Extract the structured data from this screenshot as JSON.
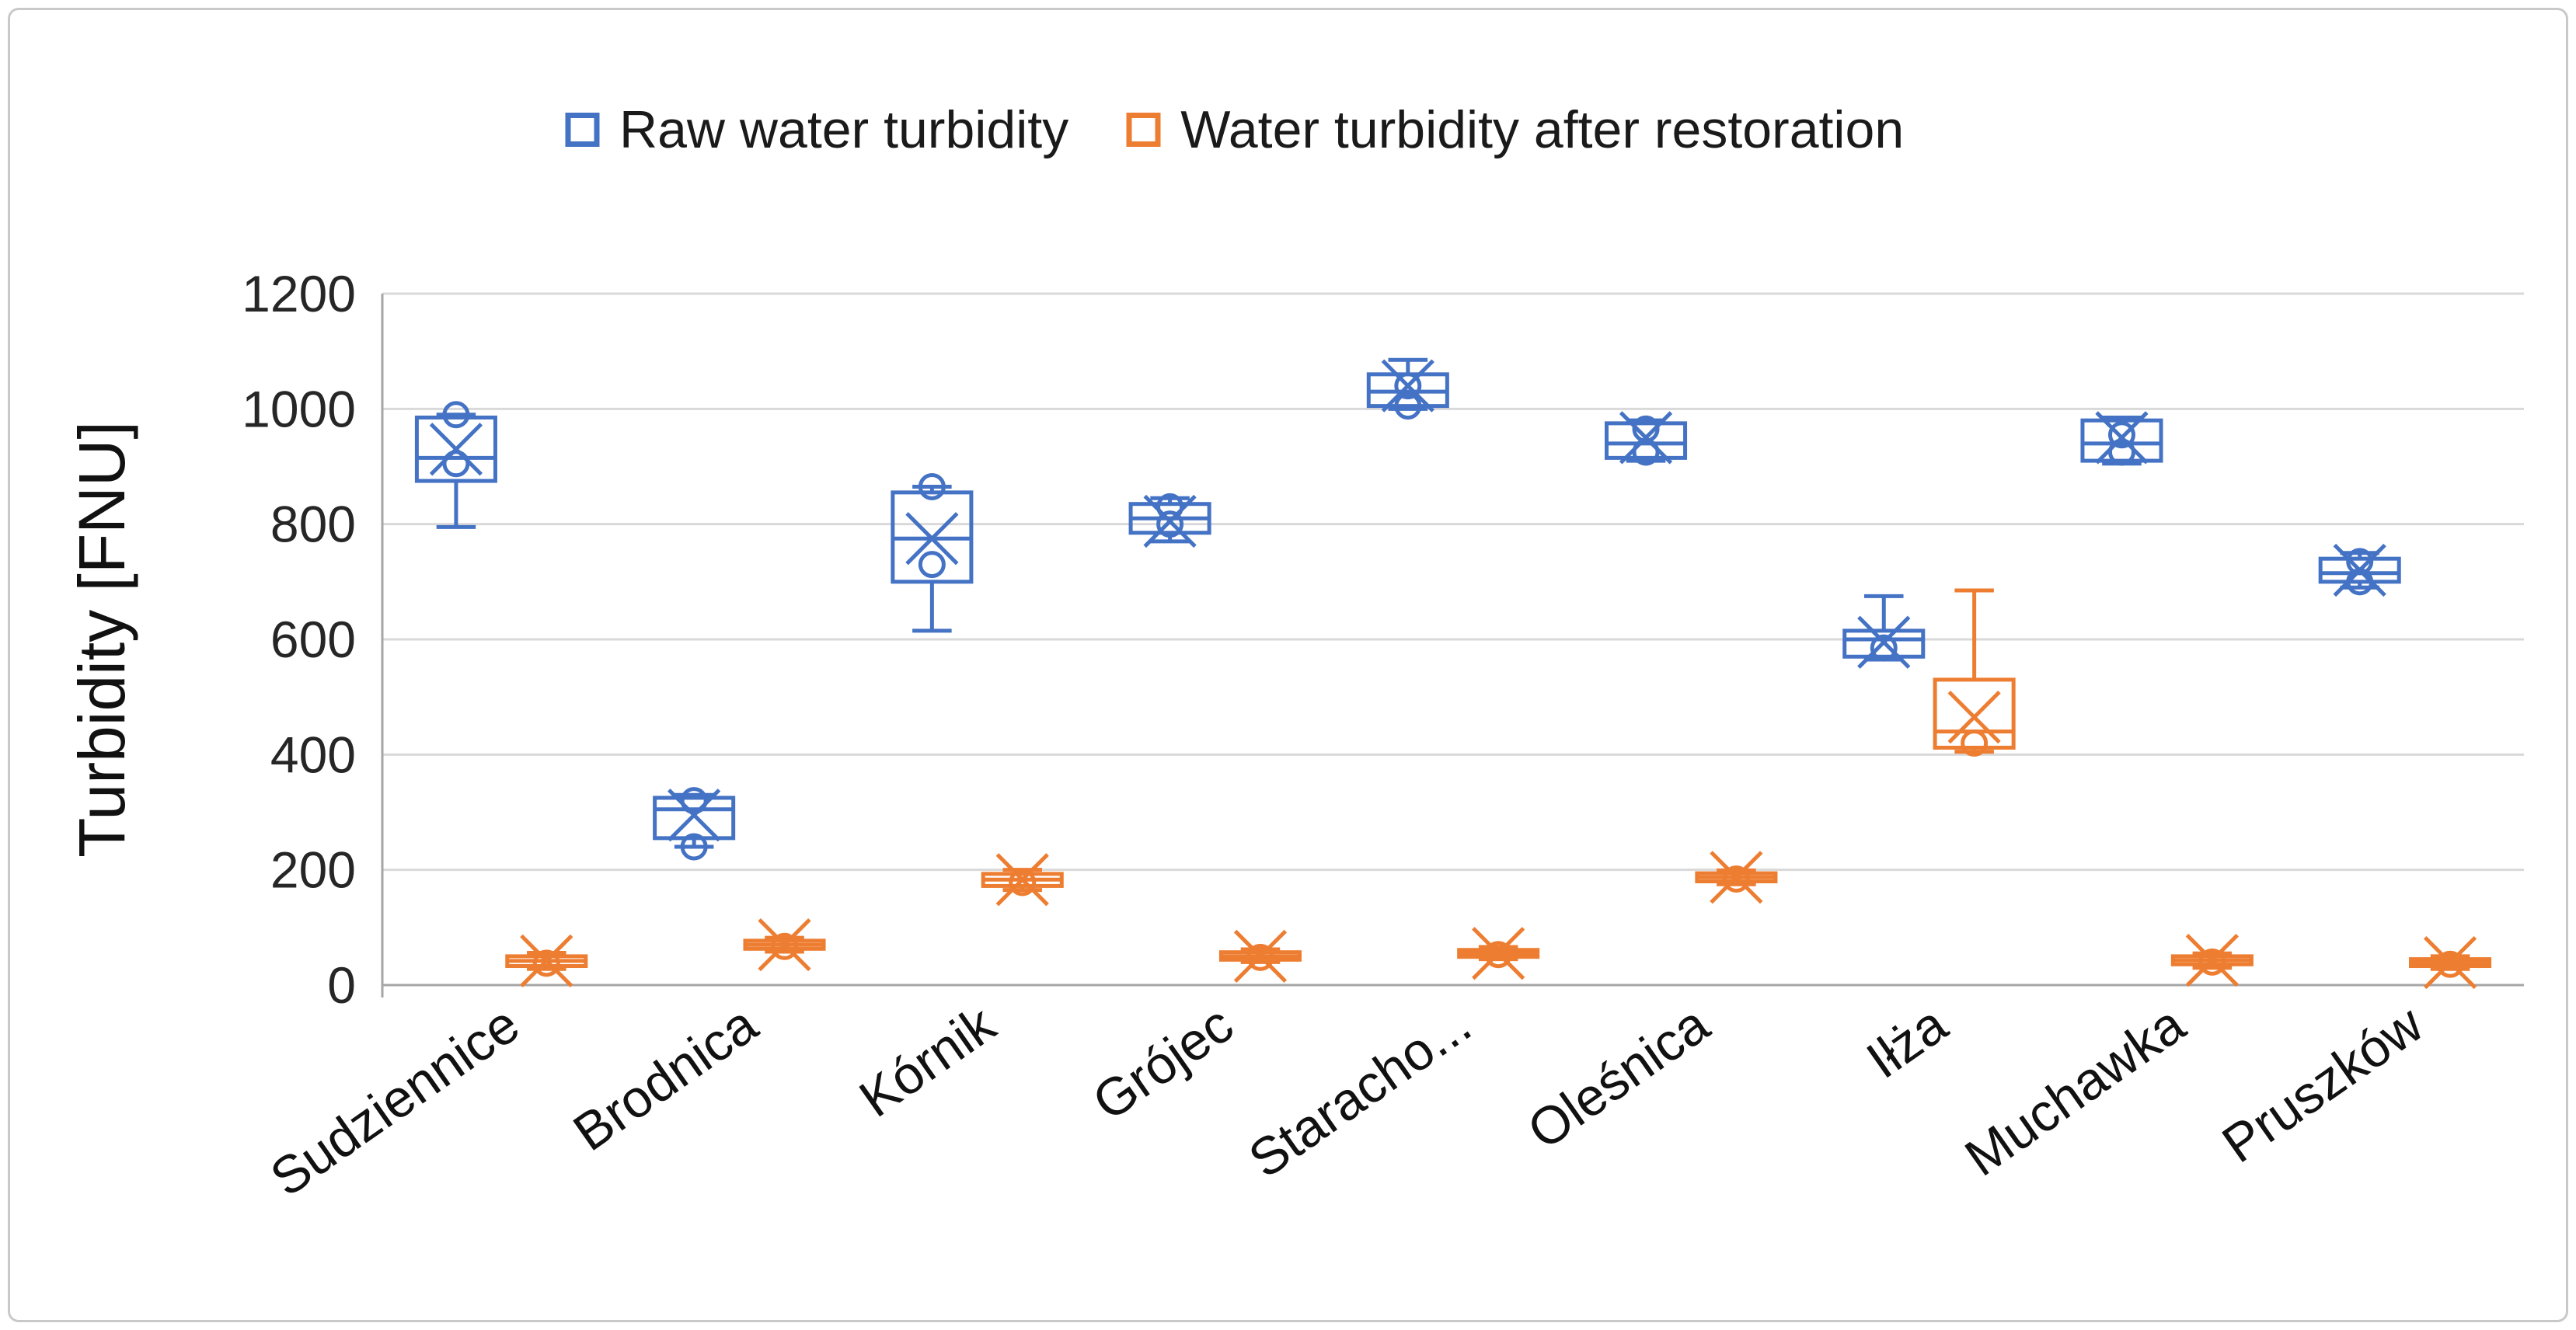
{
  "chart_data": {
    "type": "boxplot",
    "title": "",
    "ylabel": "Turbidity [FNU]",
    "ylim": [
      0,
      1200
    ],
    "ytick_interval": 200,
    "ytick_labels": [
      "0",
      "200",
      "400",
      "600",
      "800",
      "1000",
      "1200"
    ],
    "grid": "horizontal",
    "legend_position": "top",
    "categories": [
      "Sudziennice",
      "Brodnica",
      "Kórnik",
      "Grójec",
      "Staracho...",
      "Oleśnica",
      "Iłża",
      "Muchawka",
      "Pruszków"
    ],
    "series": [
      {
        "name": "Raw water turbidity",
        "color": "#4472C4",
        "boxes": [
          {
            "low": 795,
            "q1": 875,
            "median": 915,
            "q3": 985,
            "high": 990,
            "mean": 930,
            "outliers": [
              905,
              990
            ]
          },
          {
            "low": 240,
            "q1": 255,
            "median": 305,
            "q3": 325,
            "high": 330,
            "mean": 295,
            "outliers": [
              240,
              320
            ]
          },
          {
            "low": 615,
            "q1": 700,
            "median": 775,
            "q3": 855,
            "high": 865,
            "mean": 775,
            "outliers": [
              730,
              865
            ]
          },
          {
            "low": 770,
            "q1": 785,
            "median": 810,
            "q3": 835,
            "high": 845,
            "mean": 805,
            "outliers": [
              800,
              830
            ]
          },
          {
            "low": 1000,
            "q1": 1005,
            "median": 1030,
            "q3": 1060,
            "high": 1085,
            "mean": 1040,
            "outliers": [
              1005,
              1040
            ]
          },
          {
            "low": 910,
            "q1": 915,
            "median": 940,
            "q3": 975,
            "high": 980,
            "mean": 950,
            "outliers": [
              925,
              965
            ]
          },
          {
            "low": 565,
            "q1": 570,
            "median": 600,
            "q3": 615,
            "high": 675,
            "mean": 595,
            "outliers": [
              585
            ]
          },
          {
            "low": 905,
            "q1": 910,
            "median": 940,
            "q3": 980,
            "high": 985,
            "mean": 950,
            "outliers": [
              925,
              955
            ]
          },
          {
            "low": 690,
            "q1": 700,
            "median": 715,
            "q3": 740,
            "high": 750,
            "mean": 720,
            "outliers": [
              700,
              735
            ]
          }
        ]
      },
      {
        "name": "Water turbidity after restoration",
        "color": "#ED7D31",
        "boxes": [
          {
            "low": 28,
            "q1": 33,
            "median": 42,
            "q3": 50,
            "high": 56,
            "mean": 42,
            "outliers": [
              38
            ]
          },
          {
            "low": 58,
            "q1": 63,
            "median": 70,
            "q3": 77,
            "high": 82,
            "mean": 70,
            "outliers": [
              67
            ]
          },
          {
            "low": 165,
            "q1": 172,
            "median": 183,
            "q3": 193,
            "high": 200,
            "mean": 183,
            "outliers": [
              178
            ]
          },
          {
            "low": 40,
            "q1": 44,
            "median": 50,
            "q3": 57,
            "high": 62,
            "mean": 50,
            "outliers": [
              48
            ]
          },
          {
            "low": 45,
            "q1": 49,
            "median": 55,
            "q3": 61,
            "high": 66,
            "mean": 55,
            "outliers": [
              53
            ]
          },
          {
            "low": 175,
            "q1": 180,
            "median": 187,
            "q3": 194,
            "high": 199,
            "mean": 187,
            "outliers": [
              184
            ]
          },
          {
            "low": 405,
            "q1": 412,
            "median": 440,
            "q3": 530,
            "high": 685,
            "mean": 465,
            "outliers": [
              420
            ]
          },
          {
            "low": 30,
            "q1": 36,
            "median": 43,
            "q3": 50,
            "high": 55,
            "mean": 43,
            "outliers": [
              40
            ]
          },
          {
            "low": 28,
            "q1": 33,
            "median": 39,
            "q3": 45,
            "high": 50,
            "mean": 39,
            "outliers": [
              36
            ]
          }
        ]
      }
    ]
  },
  "colors": {
    "grid": "#D9D9D9",
    "axis": "#A6A6A6",
    "text": "#262626"
  }
}
